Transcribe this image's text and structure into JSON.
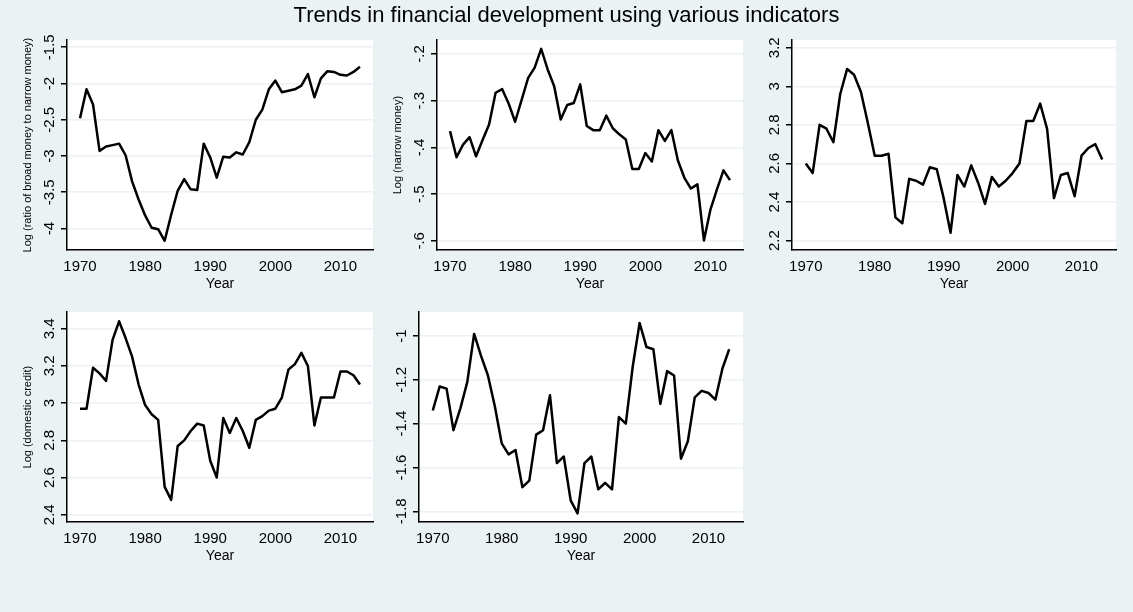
{
  "chart_data": [
    {
      "type": "line",
      "title": "Trends in financial development using various indicators",
      "xlabel": "Year",
      "ylabel": "Log (ratio of broad money to narrow money)",
      "color": "#000000",
      "marker": "none",
      "line_style": "solid",
      "grid": "y",
      "x": [
        1970,
        1971,
        1972,
        1973,
        1974,
        1975,
        1976,
        1977,
        1978,
        1979,
        1980,
        1981,
        1982,
        1983,
        1984,
        1985,
        1986,
        1987,
        1988,
        1989,
        1990,
        1991,
        1992,
        1993,
        1994,
        1995,
        1996,
        1997,
        1998,
        1999,
        2000,
        2001,
        2002,
        2003,
        2004,
        2005,
        2006,
        2007,
        2008,
        2009,
        2010,
        2011,
        2012,
        2013
      ],
      "values": [
        -2.48,
        -2.08,
        -2.29,
        -2.93,
        -2.87,
        -2.85,
        -2.83,
        -2.99,
        -3.35,
        -3.6,
        -3.82,
        -3.99,
        -4.01,
        -4.17,
        -3.81,
        -3.48,
        -3.32,
        -3.46,
        -3.47,
        -2.83,
        -3.02,
        -3.3,
        -3.01,
        -3.02,
        -2.95,
        -2.98,
        -2.81,
        -2.5,
        -2.36,
        -2.08,
        -1.96,
        -2.12,
        -2.1,
        -2.08,
        -2.03,
        -1.87,
        -2.19,
        -1.93,
        -1.83,
        -1.84,
        -1.88,
        -1.89,
        -1.84,
        -1.77
      ],
      "xlim": [
        1968,
        2015
      ],
      "xticks": [
        1970,
        1980,
        1990,
        2000,
        2010
      ],
      "ylim": [
        -4.3,
        -1.4
      ],
      "yticks": [
        -4,
        -3.5,
        -3,
        -2.5,
        -2,
        -1.5
      ]
    },
    {
      "type": "line",
      "xlabel": "Year",
      "ylabel": "Log (narrow money)",
      "color": "#000000",
      "marker": "none",
      "line_style": "solid",
      "grid": "y",
      "x": [
        1970,
        1971,
        1972,
        1973,
        1974,
        1975,
        1976,
        1977,
        1978,
        1979,
        1980,
        1981,
        1982,
        1983,
        1984,
        1985,
        1986,
        1987,
        1988,
        1989,
        1990,
        1991,
        1992,
        1993,
        1994,
        1995,
        1996,
        1997,
        1998,
        1999,
        2000,
        2001,
        2002,
        2003,
        2004,
        2005,
        2006,
        2007,
        2008,
        2009,
        2010,
        2011,
        2012,
        2013
      ],
      "values": [
        -0.365,
        -0.421,
        -0.394,
        -0.378,
        -0.419,
        -0.384,
        -0.351,
        -0.283,
        -0.275,
        -0.306,
        -0.345,
        -0.298,
        -0.251,
        -0.229,
        -0.189,
        -0.233,
        -0.269,
        -0.34,
        -0.309,
        -0.305,
        -0.265,
        -0.354,
        -0.363,
        -0.363,
        -0.332,
        -0.359,
        -0.372,
        -0.383,
        -0.446,
        -0.446,
        -0.412,
        -0.43,
        -0.363,
        -0.386,
        -0.363,
        -0.428,
        -0.465,
        -0.488,
        -0.479,
        -0.599,
        -0.533,
        -0.49,
        -0.449,
        -0.47
      ],
      "xlim": [
        1968,
        2015
      ],
      "xticks": [
        1970,
        1980,
        1990,
        2000,
        2010
      ],
      "ylim": [
        -0.62,
        -0.17
      ],
      "yticks": [
        {
          "value": -0.6,
          "label": "-.6"
        },
        {
          "value": -0.5,
          "label": "-.5"
        },
        {
          "value": -0.4,
          "label": "-.4"
        },
        {
          "value": -0.3,
          "label": "-.3"
        },
        {
          "value": -0.2,
          "label": "-.2"
        }
      ]
    },
    {
      "type": "line",
      "xlabel": "Year",
      "color": "#000000",
      "marker": "none",
      "line_style": "solid",
      "grid": "y",
      "x": [
        1970,
        1971,
        1972,
        1973,
        1974,
        1975,
        1976,
        1977,
        1978,
        1979,
        1980,
        1981,
        1982,
        1983,
        1984,
        1985,
        1986,
        1987,
        1988,
        1989,
        1990,
        1991,
        1992,
        1993,
        1994,
        1995,
        1996,
        1997,
        1998,
        1999,
        2000,
        2001,
        2002,
        2003,
        2004,
        2005,
        2006,
        2007,
        2008,
        2009,
        2010,
        2011,
        2012,
        2013
      ],
      "values": [
        2.6,
        2.55,
        2.8,
        2.78,
        2.71,
        2.96,
        3.09,
        3.06,
        2.97,
        2.81,
        2.64,
        2.64,
        2.65,
        2.32,
        2.29,
        2.52,
        2.51,
        2.49,
        2.58,
        2.57,
        2.42,
        2.24,
        2.54,
        2.48,
        2.59,
        2.5,
        2.39,
        2.53,
        2.48,
        2.51,
        2.55,
        2.6,
        2.82,
        2.82,
        2.91,
        2.78,
        2.42,
        2.54,
        2.55,
        2.43,
        2.64,
        2.68,
        2.7,
        2.62
      ],
      "xlim": [
        1968,
        2015
      ],
      "xticks": [
        1970,
        1980,
        1990,
        2000,
        2010
      ],
      "ylim": [
        2.15,
        3.24
      ],
      "yticks": [
        2.2,
        2.4,
        2.6,
        2.8,
        3,
        3.2
      ]
    },
    {
      "type": "line",
      "xlabel": "Year",
      "ylabel": "Log (domestic credit)",
      "color": "#000000",
      "marker": "none",
      "line_style": "solid",
      "grid": "y",
      "x": [
        1970,
        1971,
        1972,
        1973,
        1974,
        1975,
        1976,
        1977,
        1978,
        1979,
        1980,
        1981,
        1982,
        1983,
        1984,
        1985,
        1986,
        1987,
        1988,
        1989,
        1990,
        1991,
        1992,
        1993,
        1994,
        1995,
        1996,
        1997,
        1998,
        1999,
        2000,
        2001,
        2002,
        2003,
        2004,
        2005,
        2006,
        2007,
        2008,
        2009,
        2010,
        2011,
        2012,
        2013
      ],
      "values": [
        2.97,
        2.97,
        3.19,
        3.16,
        3.12,
        3.34,
        3.44,
        3.35,
        3.25,
        3.1,
        2.99,
        2.94,
        2.91,
        2.55,
        2.48,
        2.77,
        2.8,
        2.85,
        2.89,
        2.88,
        2.69,
        2.6,
        2.92,
        2.84,
        2.92,
        2.85,
        2.76,
        2.91,
        2.93,
        2.96,
        2.97,
        3.03,
        3.18,
        3.21,
        3.27,
        3.2,
        2.88,
        3.03,
        3.03,
        3.03,
        3.17,
        3.17,
        3.15,
        3.1
      ],
      "xlim": [
        1968,
        2015
      ],
      "xticks": [
        1970,
        1980,
        1990,
        2000,
        2010
      ],
      "ylim": [
        2.36,
        3.49
      ],
      "yticks": [
        2.4,
        2.6,
        2.8,
        3,
        3.2,
        3.4
      ]
    },
    {
      "type": "line",
      "xlabel": "Year",
      "color": "#000000",
      "marker": "none",
      "line_style": "solid",
      "grid": "y",
      "x": [
        1970,
        1971,
        1972,
        1973,
        1974,
        1975,
        1976,
        1977,
        1978,
        1979,
        1980,
        1981,
        1982,
        1983,
        1984,
        1985,
        1986,
        1987,
        1988,
        1989,
        1990,
        1991,
        1992,
        1993,
        1994,
        1995,
        1996,
        1997,
        1998,
        1999,
        2000,
        2001,
        2002,
        2003,
        2004,
        2005,
        2006,
        2007,
        2008,
        2009,
        2010,
        2011,
        2012,
        2013
      ],
      "values": [
        -1.34,
        -1.23,
        -1.24,
        -1.43,
        -1.33,
        -1.21,
        -0.99,
        -1.09,
        -1.18,
        -1.32,
        -1.49,
        -1.54,
        -1.52,
        -1.69,
        -1.66,
        -1.45,
        -1.43,
        -1.27,
        -1.58,
        -1.55,
        -1.75,
        -1.81,
        -1.58,
        -1.55,
        -1.7,
        -1.67,
        -1.7,
        -1.37,
        -1.4,
        -1.14,
        -0.94,
        -1.05,
        -1.06,
        -1.31,
        -1.16,
        -1.18,
        -1.56,
        -1.48,
        -1.28,
        -1.25,
        -1.26,
        -1.29,
        -1.15,
        -1.06
      ],
      "xlim": [
        1968,
        2015
      ],
      "xticks": [
        1970,
        1980,
        1990,
        2000,
        2010
      ],
      "ylim": [
        -1.85,
        -0.89
      ],
      "yticks": [
        -1.8,
        -1.6,
        -1.4,
        -1.2,
        -1
      ]
    }
  ]
}
